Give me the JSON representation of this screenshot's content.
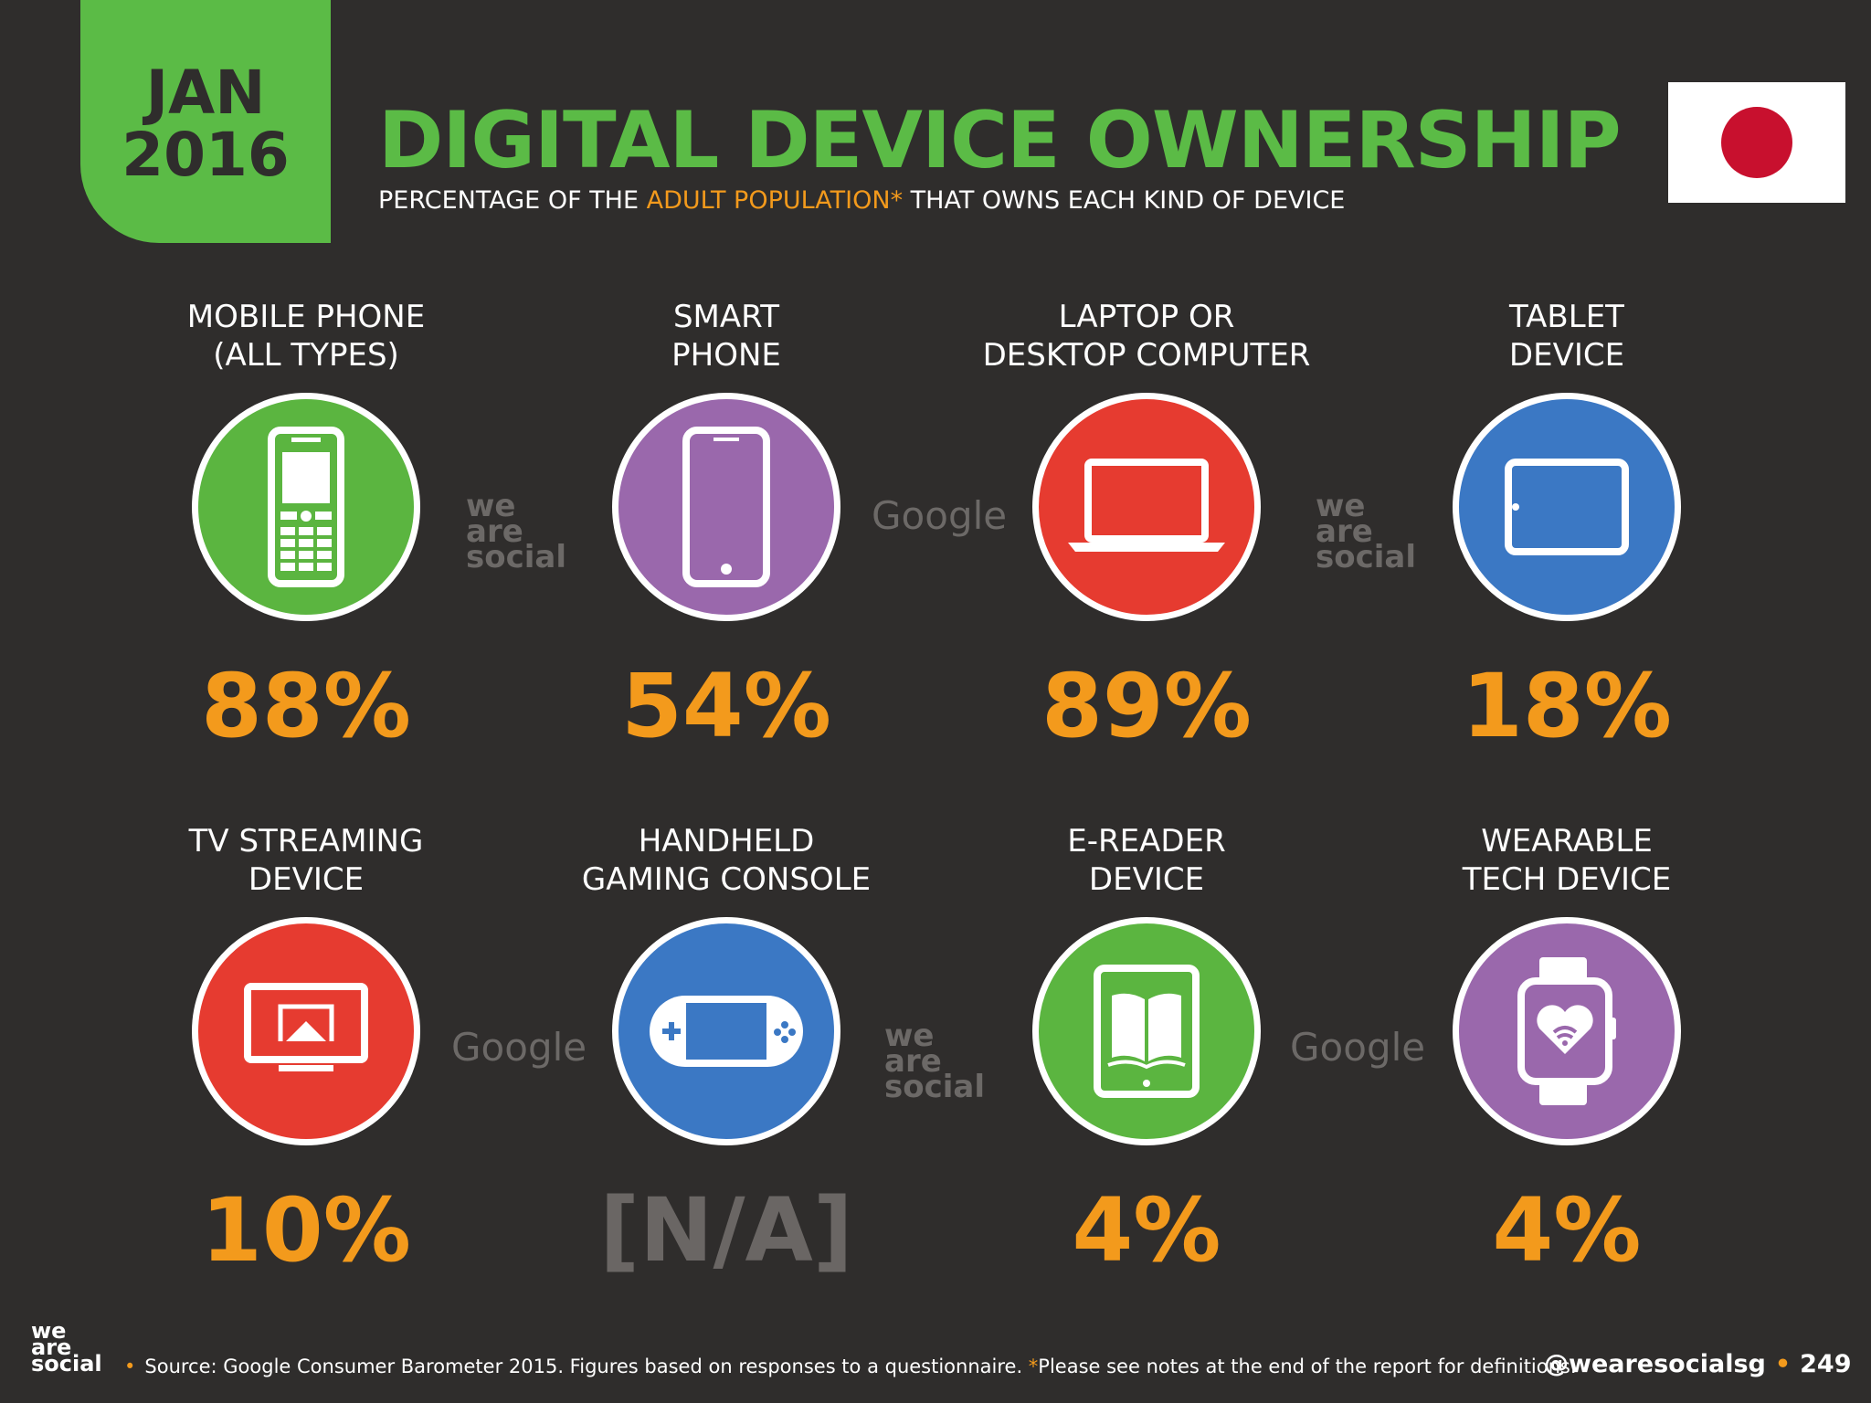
{
  "header": {
    "date_month": "JAN",
    "date_year": "2016",
    "title": "DIGITAL DEVICE OWNERSHIP",
    "subtitle_pre": "PERCENTAGE OF THE ",
    "subtitle_highlight": "ADULT POPULATION*",
    "subtitle_post": " THAT OWNS EACH KIND OF DEVICE",
    "flag": "japan-flag"
  },
  "devices": [
    {
      "label_line1": "MOBILE PHONE",
      "label_line2": "(ALL TYPES)",
      "value": "88%",
      "icon": "mobile-phone-icon",
      "color": "#5bb540"
    },
    {
      "label_line1": "SMART",
      "label_line2": "PHONE",
      "value": "54%",
      "icon": "smartphone-icon",
      "color": "#9a68ac"
    },
    {
      "label_line1": "LAPTOP OR",
      "label_line2": "DESKTOP COMPUTER",
      "value": "89%",
      "icon": "laptop-icon",
      "color": "#e63b30"
    },
    {
      "label_line1": "TABLET",
      "label_line2": "DEVICE",
      "value": "18%",
      "icon": "tablet-icon",
      "color": "#3b78c4"
    },
    {
      "label_line1": "TV STREAMING",
      "label_line2": "DEVICE",
      "value": "10%",
      "icon": "tv-streaming-icon",
      "color": "#e63b30"
    },
    {
      "label_line1": "HANDHELD",
      "label_line2": "GAMING CONSOLE",
      "value": "[N/A]",
      "icon": "gaming-console-icon",
      "color": "#3b78c4"
    },
    {
      "label_line1": "E-READER",
      "label_line2": "DEVICE",
      "value": "4%",
      "icon": "e-reader-icon",
      "color": "#5bb540"
    },
    {
      "label_line1": "WEARABLE",
      "label_line2": "TECH DEVICE",
      "value": "4%",
      "icon": "smartwatch-icon",
      "color": "#9a68ac"
    }
  ],
  "watermarks": {
    "was_line1": "we",
    "was_line2": "are",
    "was_line3": "social",
    "google": "Google"
  },
  "footer": {
    "logo_line1": "we",
    "logo_line2": "are",
    "logo_line3": "social",
    "source": "Source: Google Consumer Barometer 2015. Figures based on responses to a questionnaire. ",
    "note": "*",
    "note_rest": "Please see notes at the end of the report for definitions.",
    "handle": "@wearesocialsg",
    "page": "249"
  },
  "colors": {
    "background": "#2f2d2c",
    "green": "#5bbb46",
    "orange": "#f39a1c"
  }
}
